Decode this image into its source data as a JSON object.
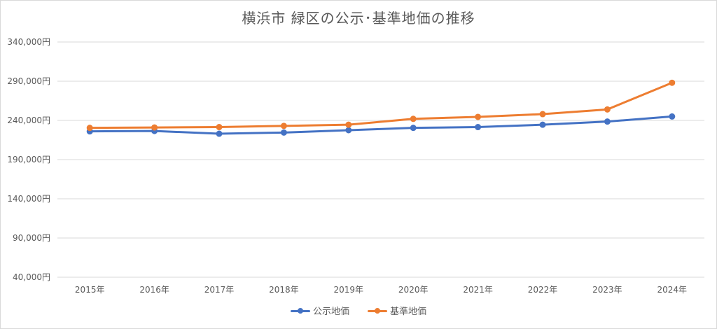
{
  "chart_data": {
    "type": "line",
    "title": "横浜市 緑区の公示･基準地価の推移",
    "categories": [
      "2015年",
      "2016年",
      "2017年",
      "2018年",
      "2019年",
      "2020年",
      "2021年",
      "2022年",
      "2023年",
      "2024年"
    ],
    "y_tick_labels": [
      "40,000円",
      "90,000円",
      "140,000円",
      "190,000円",
      "240,000円",
      "290,000円",
      "340,000円"
    ],
    "y_ticks": [
      40000,
      90000,
      140000,
      190000,
      240000,
      290000,
      340000
    ],
    "ylim": [
      40000,
      340000
    ],
    "grid": true,
    "legend_position": "bottom",
    "series": [
      {
        "name": "公示地価",
        "color": "#4472c4",
        "values": [
          226000,
          226500,
          223000,
          224500,
          227500,
          230500,
          231500,
          234500,
          238500,
          245000
        ]
      },
      {
        "name": "基準地価",
        "color": "#ed7d31",
        "values": [
          230500,
          231000,
          231500,
          233000,
          234500,
          242000,
          244500,
          248000,
          254000,
          288000
        ]
      }
    ]
  }
}
